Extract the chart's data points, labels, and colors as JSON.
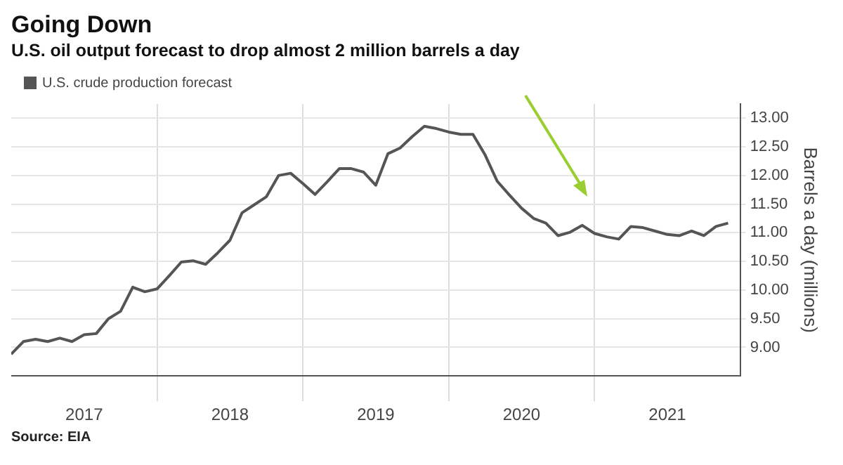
{
  "chart_data": {
    "type": "line",
    "title": "Going Down",
    "subtitle": "U.S. oil output forecast to drop almost 2 million barrels a day",
    "ylabel": "Barrels a day (millions)",
    "annotations": [
      "Source: EIA"
    ],
    "x": [
      "2017-01",
      "2017-02",
      "2017-03",
      "2017-04",
      "2017-05",
      "2017-06",
      "2017-07",
      "2017-08",
      "2017-09",
      "2017-10",
      "2017-11",
      "2017-12",
      "2018-01",
      "2018-02",
      "2018-03",
      "2018-04",
      "2018-05",
      "2018-06",
      "2018-07",
      "2018-08",
      "2018-09",
      "2018-10",
      "2018-11",
      "2018-12",
      "2019-01",
      "2019-02",
      "2019-03",
      "2019-04",
      "2019-05",
      "2019-06",
      "2019-07",
      "2019-08",
      "2019-09",
      "2019-10",
      "2019-11",
      "2019-12",
      "2020-01",
      "2020-02",
      "2020-03",
      "2020-04",
      "2020-05",
      "2020-06",
      "2020-07",
      "2020-08",
      "2020-09",
      "2020-10",
      "2020-11",
      "2020-12",
      "2021-01",
      "2021-02",
      "2021-03",
      "2021-04",
      "2021-05",
      "2021-06",
      "2021-07",
      "2021-08",
      "2021-09",
      "2021-10",
      "2021-11",
      "2021-12"
    ],
    "series": [
      {
        "name": "U.S. crude production forecast",
        "color": "#555555",
        "values": [
          8.88,
          9.1,
          9.14,
          9.1,
          9.16,
          9.1,
          9.22,
          9.24,
          9.5,
          9.63,
          10.05,
          9.97,
          10.02,
          10.25,
          10.49,
          10.51,
          10.45,
          10.65,
          10.87,
          11.35,
          11.49,
          11.63,
          12.0,
          12.04,
          11.86,
          11.67,
          11.89,
          12.12,
          12.12,
          12.06,
          11.83,
          12.38,
          12.48,
          12.68,
          12.86,
          12.82,
          12.76,
          12.72,
          12.72,
          12.36,
          11.9,
          11.66,
          11.43,
          11.25,
          11.17,
          10.95,
          11.01,
          11.13,
          10.99,
          10.93,
          10.89,
          11.11,
          11.09,
          11.03,
          10.97,
          10.95,
          11.03,
          10.95,
          11.11,
          11.17
        ]
      }
    ],
    "xlim": [
      "2017-01",
      "2022-01"
    ],
    "xticks": [
      {
        "value": "2017-07",
        "label": "2017"
      },
      {
        "value": "2018-01",
        "label": null
      },
      {
        "value": "2018-07",
        "label": "2018"
      },
      {
        "value": "2019-01",
        "label": null
      },
      {
        "value": "2019-07",
        "label": "2019"
      },
      {
        "value": "2020-01",
        "label": null
      },
      {
        "value": "2020-07",
        "label": "2020"
      },
      {
        "value": "2021-01",
        "label": null
      },
      {
        "value": "2021-07",
        "label": "2021"
      }
    ],
    "ylim": [
      8.5,
      13.25
    ],
    "yticks": [
      {
        "value": 9,
        "label": "9.00"
      },
      {
        "value": 9.5,
        "label": "9.50"
      },
      {
        "value": 10,
        "label": "10.00"
      },
      {
        "value": 10.5,
        "label": "10.50"
      },
      {
        "value": 11,
        "label": "11.00"
      },
      {
        "value": 11.5,
        "label": "11.50"
      },
      {
        "value": 12,
        "label": "12.00"
      },
      {
        "value": 12.5,
        "label": "12.50"
      },
      {
        "value": 13,
        "label": "13.00"
      }
    ],
    "grid": true,
    "legend": "top left"
  }
}
